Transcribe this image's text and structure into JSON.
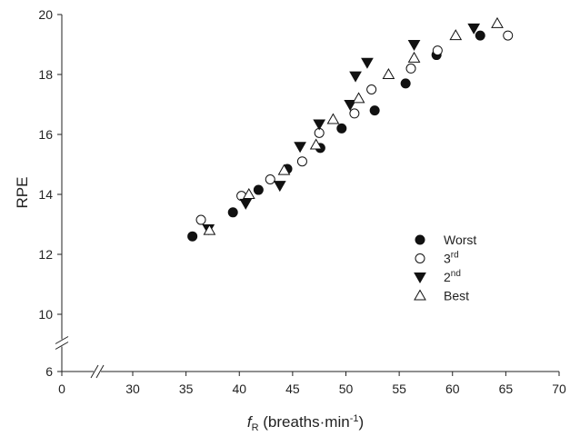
{
  "chart_data": {
    "type": "scatter",
    "xlabel": "fR (breaths·min-1)",
    "ylabel": "RPE",
    "xlim": [
      0,
      70
    ],
    "xticks": [
      0,
      30,
      35,
      40,
      45,
      50,
      55,
      60,
      65,
      70
    ],
    "ylim": [
      6,
      20
    ],
    "yticks": [
      6,
      10,
      12,
      14,
      16,
      18,
      20
    ],
    "axis_break": true,
    "legend": "lower right",
    "series": [
      {
        "name": "Worst",
        "marker": "circle",
        "filled": true,
        "color": "#111111",
        "x": [
          35.6,
          39.4,
          41.8,
          44.5,
          47.6,
          49.6,
          52.7,
          55.6,
          58.5,
          62.6
        ],
        "values": [
          12.6,
          13.4,
          14.15,
          14.85,
          15.55,
          16.2,
          16.8,
          17.7,
          18.65,
          19.3
        ]
      },
      {
        "name": "3rd",
        "marker": "circle",
        "filled": false,
        "color": "#111111",
        "x": [
          36.4,
          40.2,
          42.9,
          45.9,
          47.5,
          50.8,
          52.4,
          56.1,
          58.6,
          65.2
        ],
        "values": [
          13.15,
          13.95,
          14.5,
          15.1,
          16.05,
          16.7,
          17.5,
          18.2,
          18.8,
          19.3
        ]
      },
      {
        "name": "2nd",
        "marker": "triangle-down",
        "filled": true,
        "color": "#111111",
        "x": [
          37.1,
          40.6,
          43.8,
          45.7,
          47.5,
          50.4,
          50.9,
          52.0,
          56.4,
          62.0
        ],
        "values": [
          12.85,
          13.7,
          14.3,
          15.6,
          16.35,
          17.0,
          17.95,
          18.4,
          19.0,
          19.55
        ]
      },
      {
        "name": "Best",
        "marker": "triangle-up",
        "filled": false,
        "color": "#111111",
        "x": [
          37.2,
          40.9,
          44.2,
          47.2,
          48.8,
          51.2,
          54.0,
          56.4,
          60.3,
          64.2
        ],
        "values": [
          12.8,
          14.0,
          14.8,
          15.65,
          16.5,
          17.2,
          18.0,
          18.55,
          19.3,
          19.7
        ]
      }
    ]
  }
}
